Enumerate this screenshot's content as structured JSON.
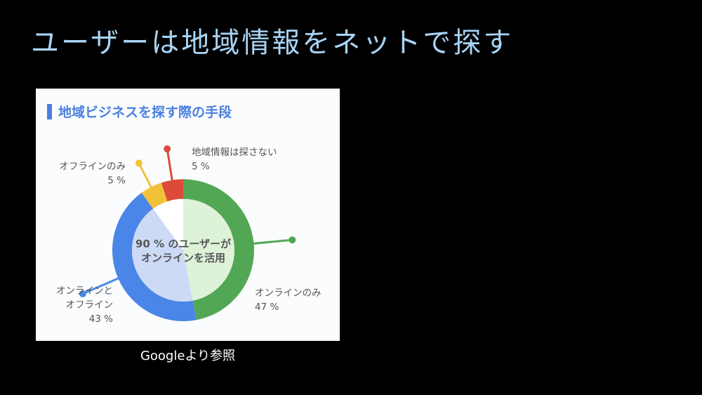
{
  "slide": {
    "title": "ユーザーは地域情報をネットで探す",
    "caption": "Googleより参照"
  },
  "chart_data": {
    "type": "pie",
    "title": "地域ビジネスを探す際の手段",
    "center_label": [
      "90 % のユーザーが",
      "オンラインを活用"
    ],
    "slices": [
      {
        "name": "オンラインのみ",
        "value": 47,
        "value_label": "47 %",
        "color": "#52a755",
        "inner_color": "#def2d8"
      },
      {
        "name": "オンラインと\nオフライン",
        "value": 43,
        "value_label": "43 %",
        "color": "#4a86e8",
        "inner_color": "#cddaf6"
      },
      {
        "name": "オフラインのみ",
        "value": 5,
        "value_label": "5 %",
        "color": "#f2c13a",
        "inner_color": "#ffffff"
      },
      {
        "name": "地域情報は探さない",
        "value": 5,
        "value_label": "5 %",
        "color": "#dc4b3a",
        "inner_color": "#ffffff"
      }
    ],
    "title_bar_color": "#4a80de"
  }
}
